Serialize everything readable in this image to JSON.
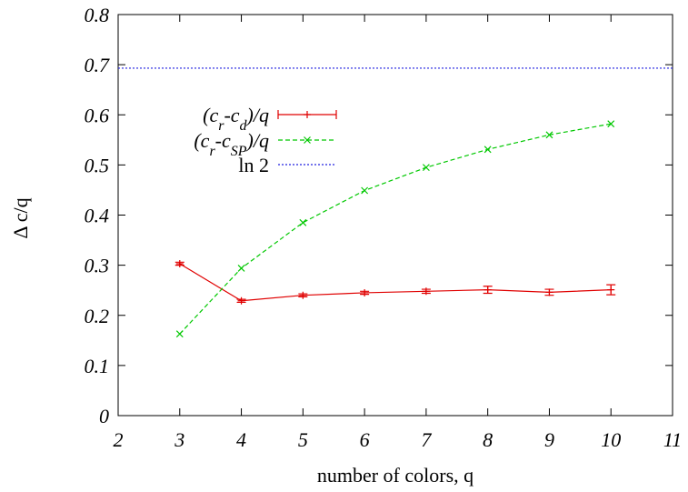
{
  "chart_data": {
    "type": "line",
    "title": "",
    "xlabel": "number of colors, q",
    "ylabel": "Δ c/q",
    "xlim": [
      2,
      11
    ],
    "ylim": [
      0,
      0.8
    ],
    "xticks": [
      "2",
      "3",
      "4",
      "5",
      "6",
      "7",
      "8",
      "9",
      "10",
      "11"
    ],
    "yticks": [
      "0",
      "0.1",
      "0.2",
      "0.3",
      "0.4",
      "0.5",
      "0.6",
      "0.7",
      "0.8"
    ],
    "grid": false,
    "legend_position": "top-left",
    "series": [
      {
        "name": "(c_r-c_d)/q",
        "color": "#e00000",
        "style": "solid",
        "marker": "plus",
        "x": [
          3,
          4,
          5,
          6,
          7,
          8,
          9,
          10
        ],
        "y": [
          0.303,
          0.229,
          0.24,
          0.245,
          0.248,
          0.251,
          0.246,
          0.251
        ],
        "err": [
          0.003,
          0.003,
          0.003,
          0.003,
          0.004,
          0.007,
          0.006,
          0.01
        ]
      },
      {
        "name": "(c_r-c_SP)/q",
        "color": "#00c800",
        "style": "dashed",
        "marker": "x",
        "x": [
          3,
          4,
          5,
          6,
          7,
          8,
          9,
          10
        ],
        "y": [
          0.163,
          0.294,
          0.385,
          0.449,
          0.495,
          0.531,
          0.56,
          0.582
        ]
      },
      {
        "name": "ln 2",
        "color": "#2020e0",
        "style": "dotted",
        "marker": "none",
        "y_constant": 0.6931
      }
    ],
    "legend": {
      "entries": [
        {
          "base": "(c",
          "sub1": "r",
          "mid": "-c",
          "sub2": "d",
          "tail": ")/q"
        },
        {
          "base": "(c",
          "sub1": "r",
          "mid": "-c",
          "sub2": "SP",
          "tail": ")/q"
        },
        {
          "base": "ln 2",
          "sub1": "",
          "mid": "",
          "sub2": "",
          "tail": ""
        }
      ]
    }
  }
}
